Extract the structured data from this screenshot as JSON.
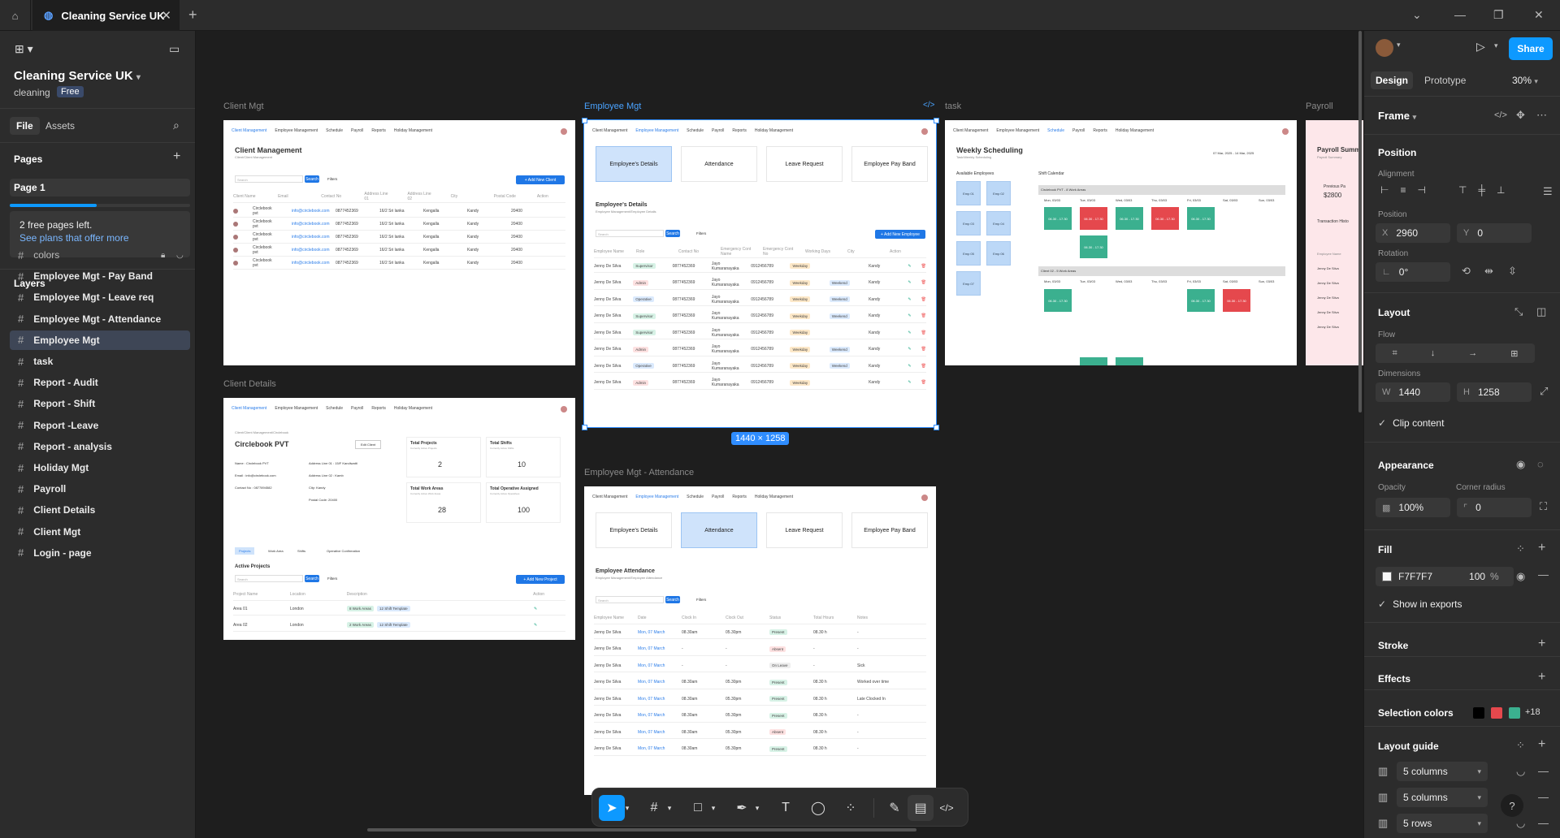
{
  "tabbar": {
    "tab_title": "Cleaning Service UK"
  },
  "left": {
    "project_title": "Cleaning Service UK",
    "subtitle": "cleaning",
    "plan_badge": "Free",
    "tab_file": "File",
    "tab_assets": "Assets",
    "pages_heading": "Pages",
    "page1": "Page 1",
    "pages_notice": "2 free pages left.",
    "pages_link": "See plans that offer more",
    "layers_heading": "Layers",
    "layers": [
      "colors",
      "Employee Mgt - Pay Band",
      "Employee Mgt - Leave req",
      "Employee Mgt -  Attendance",
      "Employee Mgt",
      "task",
      "Report - Audit",
      "Report - Shift",
      "Report -Leave",
      "Report - analysis",
      "Holiday Mgt",
      "Payroll",
      "Client Details",
      "Client Mgt",
      "Login - page"
    ]
  },
  "right": {
    "tab_design": "Design",
    "tab_prototype": "Prototype",
    "zoom": "30%",
    "share": "Share",
    "frame_label": "Frame",
    "position_heading": "Position",
    "alignment_label": "Alignment",
    "position_label": "Position",
    "x_label": "X",
    "x_value": "2960",
    "y_label": "Y",
    "y_value": "0",
    "rotation_label": "Rotation",
    "rotation_value": "0°",
    "layout_heading": "Layout",
    "flow_label": "Flow",
    "dimensions_label": "Dimensions",
    "w_label": "W",
    "w_value": "1440",
    "h_label": "H",
    "h_value": "1258",
    "clip_content": "Clip content",
    "appearance_heading": "Appearance",
    "opacity_label": "Opacity",
    "opacity_value": "100%",
    "corner_label": "Corner radius",
    "corner_value": "0",
    "fill_heading": "Fill",
    "fill_hex": "F7F7F7",
    "fill_opacity": "100",
    "fill_pct": "%",
    "show_exports": "Show in exports",
    "stroke_heading": "Stroke",
    "effects_heading": "Effects",
    "selection_colors_heading": "Selection colors",
    "selection_colors_more": "+18",
    "layout_guide_heading": "Layout guide",
    "guides": [
      "5 columns",
      "5 columns",
      "5 rows"
    ]
  },
  "canvas": {
    "frame_labels": {
      "client_mgt": "Client Mgt",
      "employee_mgt": "Employee Mgt",
      "task": "task",
      "payroll": "Payroll",
      "client_details": "Client Details",
      "attendance": "Employee Mgt -  Attendance"
    },
    "size_badge": "1440 × 1258",
    "nav": [
      "Client Management",
      "Employee Management",
      "Schedule",
      "Payroll",
      "Reports",
      "Holiday Management"
    ],
    "client_mgt": {
      "title": "Client Management",
      "subtitle": "Client/Client Management",
      "search": "Search",
      "search_btn": "Search",
      "filters": "Filters",
      "add_btn": "+ Add New Client",
      "headers": [
        "Client Name",
        "Email",
        "Contact No",
        "Address Line 01",
        "Address Line 02",
        "City",
        "Postal Code",
        "Action"
      ],
      "row": [
        "Circlebook pvt",
        "info@circlebook.com",
        "0877452369",
        "16/2 Sri lanka",
        "Kengalla",
        "Kandy",
        "20400"
      ]
    },
    "employee_mgt": {
      "cards": [
        "Employee's Details",
        "Attendance",
        "Leave Request",
        "Employee Pay Band"
      ],
      "title": "Employee's Details",
      "subtitle": "Employee Management/Employee Details",
      "search": "Search",
      "search_btn": "Search",
      "filters": "Filters",
      "add_btn": "+ Add New Employee",
      "headers": [
        "Employee Name",
        "Role",
        "Contact No",
        "Emergency Cont Name",
        "Emergency Cont No",
        "Working Days",
        "City",
        "Action"
      ],
      "rows": [
        [
          "Jenny De Silva",
          "Supervisor",
          "0877452369",
          "Jayo Kumaranayaka",
          "0912456789",
          "Weekday",
          "",
          "Kandy"
        ],
        [
          "Jenny De Silva",
          "Admin",
          "0877452369",
          "Jayo Kumaranayaka",
          "0912456789",
          "Weekday",
          "Weekend",
          "Kandy"
        ],
        [
          "Jenny De Silva",
          "Operative",
          "0877452369",
          "Jayo Kumaranayaka",
          "0912456789",
          "Weekday",
          "Weekend",
          "Kandy"
        ],
        [
          "Jenny De Silva",
          "Supervisor",
          "0877452369",
          "Jayo Kumaranayaka",
          "0912456789",
          "Weekday",
          "Weekend",
          "Kandy"
        ],
        [
          "Jenny De Silva",
          "Supervisor",
          "0877452369",
          "Jayo Kumaranayaka",
          "0912456789",
          "Weekday",
          "",
          "Kandy"
        ],
        [
          "Jenny De Silva",
          "Admin",
          "0877452369",
          "Jayo Kumaranayaka",
          "0912456789",
          "Weekday",
          "Weekend",
          "Kandy"
        ],
        [
          "Jenny De Silva",
          "Operative",
          "0877452369",
          "Jayo Kumaranayaka",
          "0912456789",
          "Weekday",
          "Weekend",
          "Kandy"
        ],
        [
          "Jenny De Silva",
          "Admin",
          "0877452369",
          "Jayo Kumaranayaka",
          "0912456789",
          "Weekday",
          "",
          "Kandy"
        ]
      ]
    },
    "task": {
      "title": "Weekly Scheduling",
      "subtitle": "Task/Weekly Scheduling",
      "available": "Available Employees",
      "calendar": "Shift Calendar",
      "date_range": "07 Mar, 2025 - 14 Mar, 2025",
      "emps": [
        "Emp 01",
        "Emp 02",
        "Emp 03",
        "Emp 04",
        "Emp 05",
        "Emp 06",
        "Emp 07"
      ],
      "client1": "Circlebook PVT - 8 Work Areas",
      "client2": "Client 02 - 5 Work Areas",
      "days": [
        "Mon, 03/03",
        "Tue, 03/03",
        "Wed, 03/03",
        "Thu, 03/03",
        "Fri, 03/03",
        "Sat, 03/03",
        "Sun, 03/03"
      ],
      "shift": "06.30 - 17.30"
    },
    "payroll": {
      "title": "Payroll Summ",
      "subtitle": "Payroll Summary",
      "prev": "Previous Pa",
      "amount": "$2800",
      "history": "Transaction Histo",
      "emp_name": "Employee Name",
      "row": "Jenny De Silva"
    },
    "client_details": {
      "breadcrumb": "Client/Client Management/Circlebook",
      "name": "Circlebook PVT",
      "edit": "Edit Client",
      "info": [
        "Name : Circlebook PVT",
        "Email : info@circlebook.com",
        "Contact No : 0877894582"
      ],
      "address": [
        "Address Line 01 : 15/F Kandiwatti",
        "Address Line 02 : Kamb",
        "City: Kandy",
        "Postal Code: 20400"
      ],
      "stats": [
        {
          "label": "Total Projects",
          "sub": "Currently Active Projects",
          "value": "2"
        },
        {
          "label": "Total Shifts",
          "sub": "Currently Active Shifts",
          "value": "10"
        },
        {
          "label": "Total Work Areas",
          "sub": "Currently Active Work Areas",
          "value": "28"
        },
        {
          "label": "Total Operative Assigned",
          "sub": "Currently Active Operatives",
          "value": "100"
        }
      ],
      "tabs": [
        "Projects",
        "Work Area",
        "Shifts",
        "Operative Confirmation"
      ],
      "active": "Active Projects",
      "search": "Search",
      "search_btn": "Search",
      "filters": "Filters",
      "add_btn": "+ Add New Project",
      "headers": [
        "Project Name",
        "Location",
        "Description",
        "Action"
      ],
      "rows": [
        [
          "Area 01",
          "London",
          "8 Work Areas",
          "12 Shift Template"
        ],
        [
          "Area 02",
          "London",
          "2 Work Areas",
          "12 Shift Template"
        ]
      ]
    },
    "attendance": {
      "cards": [
        "Employee's Details",
        "Attendance",
        "Leave Request",
        "Employee Pay Band"
      ],
      "title": "Employee Attendance",
      "subtitle": "Employee Management/Employee Attendance",
      "search": "Search",
      "search_btn": "Search",
      "filters": "Filters",
      "headers": [
        "Employee Name",
        "Date",
        "Clock In",
        "Clock Out",
        "Status",
        "Total Hours",
        "Notes"
      ],
      "rows": [
        [
          "Jenny De Silva",
          "Mon, 07 March",
          "08.30am",
          "05.30pm",
          "Present",
          "08.30 h",
          "-"
        ],
        [
          "Jenny De Silva",
          "Mon, 07 March",
          "-",
          "-",
          "Absent",
          "-",
          "-"
        ],
        [
          "Jenny De Silva",
          "Mon, 07 March",
          "-",
          "-",
          "On Leave",
          "-",
          "Sick"
        ],
        [
          "Jenny De Silva",
          "Mon, 07 March",
          "08.30am",
          "05.30pm",
          "Present",
          "08.30 h",
          "Worked over time"
        ],
        [
          "Jenny De Silva",
          "Mon, 07 March",
          "08.30am",
          "05.30pm",
          "Present",
          "08.30 h",
          "Late Clocked In"
        ],
        [
          "Jenny De Silva",
          "Mon, 07 March",
          "08.30am",
          "05.30pm",
          "Present",
          "08.30 h",
          "-"
        ],
        [
          "Jenny De Silva",
          "Mon, 07 March",
          "08.30am",
          "05.30pm",
          "Absent",
          "08.30 h",
          "-"
        ],
        [
          "Jenny De Silva",
          "Mon, 07 March",
          "08.30am",
          "05.30pm",
          "Present",
          "08.30 h",
          "-"
        ]
      ]
    }
  },
  "colors": {
    "accent": "#0d99ff",
    "selected_layer": "#3e4656",
    "sel_black": "#000000",
    "sel_red": "#e5484d",
    "sel_green": "#3bb08f"
  }
}
